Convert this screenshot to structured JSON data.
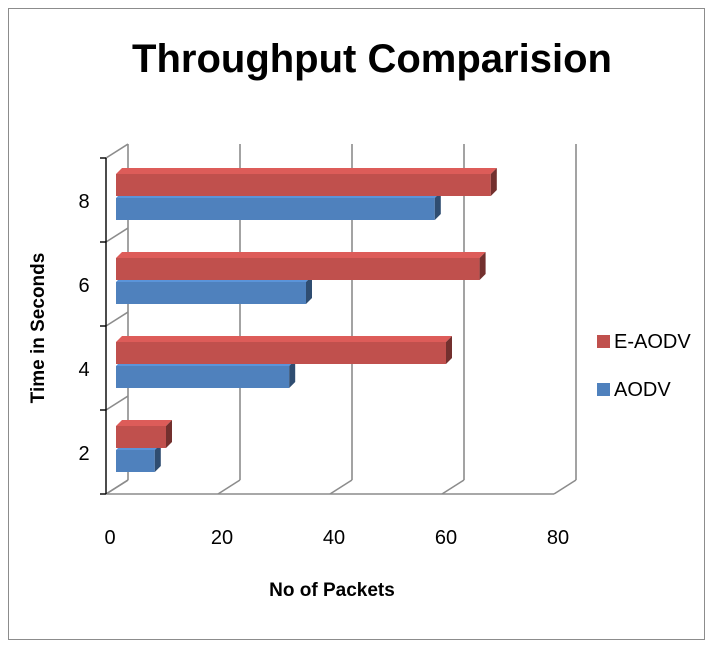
{
  "chart_data": {
    "type": "bar",
    "orientation": "horizontal",
    "three_d": true,
    "title": "Throughput Comparision",
    "xlabel": "No of Packets",
    "ylabel": "Time in Seconds",
    "categories": [
      "2",
      "4",
      "6",
      "8"
    ],
    "xlim": [
      0,
      80
    ],
    "xticks": [
      "0",
      "20",
      "40",
      "60",
      "80"
    ],
    "grid": true,
    "legend_position": "right",
    "series": [
      {
        "name": "AODV",
        "values": [
          8,
          32,
          35,
          58
        ],
        "color": "#4f81bd"
      },
      {
        "name": "E-AODV",
        "values": [
          10,
          60,
          66,
          68
        ],
        "color": "#c0504d"
      }
    ]
  }
}
